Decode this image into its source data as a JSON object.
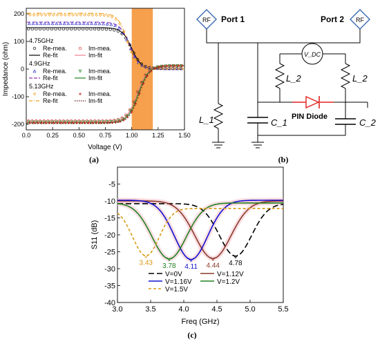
{
  "panels": {
    "a": "(a)",
    "b": "(b)",
    "c": "(c)"
  },
  "circuit": {
    "port1": "Port 1",
    "port2": "Port 2",
    "rf_label": "RF",
    "vdc_label": "V_DC",
    "l1": "L_1",
    "l2_left": "L_2",
    "l2_right": "L_2",
    "c1": "C_1",
    "c2": "C_2",
    "diode": "PIN Diode",
    "colors": {
      "wire": "#000000",
      "diode": "#e02020"
    }
  },
  "chart_data": [
    {
      "id": "a",
      "type": "line",
      "title": "",
      "xlabel": "Voltage (V)",
      "ylabel": "Impedance (ohm)",
      "xlim": [
        0.0,
        1.5
      ],
      "ylim": [
        -220,
        220
      ],
      "xticks": [
        "0.0",
        "0.25",
        "0.50",
        "0.75",
        "1.00",
        "1.25",
        "1.50"
      ],
      "yticks": [
        "200",
        "100",
        "0",
        "-100",
        "-200"
      ],
      "xtick_values": [
        0,
        0.25,
        0.5,
        0.75,
        1.0,
        1.25,
        1.5
      ],
      "ytick_values": [
        200,
        100,
        0,
        -100,
        -200
      ],
      "highlight_band": {
        "x_from": 1.0,
        "x_to": 1.2,
        "color": "#f6a04d"
      },
      "legend_groups": [
        {
          "freq": "4.75GHz",
          "items": [
            {
              "name": "Re-mea.",
              "style": "circle",
              "color": "#000000"
            },
            {
              "name": "Im-mea.",
              "style": "circle",
              "color": "#e03030"
            },
            {
              "name": "Re-fit",
              "style": "solid",
              "color": "#000000"
            },
            {
              "name": "Im-fit",
              "style": "solid",
              "color": "#f08090"
            }
          ]
        },
        {
          "freq": "4.9GHz",
          "items": [
            {
              "name": "Re-mea.",
              "style": "triangle",
              "color": "#3030d0"
            },
            {
              "name": "Im-mea.",
              "style": "triangle-down",
              "color": "#208020"
            },
            {
              "name": "Re-fit",
              "style": "dash",
              "color": "#9030b0"
            },
            {
              "name": "Im-fit",
              "style": "solid",
              "color": "#208020"
            }
          ]
        },
        {
          "freq": "5.13GHz",
          "items": [
            {
              "name": "Re-mea.",
              "style": "diamond",
              "color": "#f0a020"
            },
            {
              "name": "Im-mea.",
              "style": "star",
              "color": "#c02020"
            },
            {
              "name": "Re-fit",
              "style": "dashdot",
              "color": "#f0a020"
            },
            {
              "name": "Im-fit",
              "style": "dot",
              "color": "#602020"
            }
          ]
        }
      ],
      "series": [
        {
          "name": "Re-fit 4.75GHz",
          "color": "#000000",
          "dash": "",
          "start": 150,
          "end": 0,
          "x0": 1.0,
          "k": 22
        },
        {
          "name": "Re-fit 4.9GHz",
          "color": "#9030b0",
          "dash": "6,3",
          "start": 170,
          "end": 0,
          "x0": 0.98,
          "k": 22
        },
        {
          "name": "Re-fit 5.13GHz",
          "color": "#f0a020",
          "dash": "7,3,2,3",
          "start": 202,
          "end": 0,
          "x0": 0.96,
          "k": 22
        },
        {
          "name": "Im-fit 4.75GHz",
          "color": "#f08090",
          "dash": "",
          "start": -193,
          "end": 12,
          "x0": 1.05,
          "k": 20
        },
        {
          "name": "Im-fit 4.9GHz",
          "color": "#208020",
          "dash": "",
          "start": -195,
          "end": 12,
          "x0": 1.06,
          "k": 20
        },
        {
          "name": "Im-fit 5.13GHz",
          "color": "#602020",
          "dash": "2,2",
          "start": -197,
          "end": 12,
          "x0": 1.07,
          "k": 20
        }
      ],
      "markers": [
        {
          "name": "Re-mea. 4.75GHz",
          "shape": "circle",
          "color": "#000000",
          "start": 145,
          "end": 2,
          "x0": 1.0,
          "k": 22
        },
        {
          "name": "Re-mea. 4.9GHz",
          "shape": "triangle",
          "color": "#3030d0",
          "start": 165,
          "end": 2,
          "x0": 0.98,
          "k": 22
        },
        {
          "name": "Re-mea. 5.13GHz",
          "shape": "diamond",
          "color": "#f0a020",
          "start": 196,
          "end": 2,
          "x0": 0.96,
          "k": 22
        },
        {
          "name": "Im-mea. 4.75GHz",
          "shape": "circle",
          "color": "#e03030",
          "start": -188,
          "end": 12,
          "x0": 1.05,
          "k": 20
        },
        {
          "name": "Im-mea. 4.9GHz",
          "shape": "triangle-down",
          "color": "#208020",
          "start": -192,
          "end": 12,
          "x0": 1.06,
          "k": 20
        },
        {
          "name": "Im-mea. 5.13GHz",
          "shape": "star",
          "color": "#c02020",
          "start": -195,
          "end": 12,
          "x0": 1.07,
          "k": 20
        }
      ]
    },
    {
      "id": "c",
      "type": "line",
      "title": "",
      "xlabel": "Freq (GHz)",
      "ylabel": "S11 (dB)",
      "xlim": [
        3.0,
        5.5
      ],
      "ylim": [
        -40,
        0
      ],
      "xticks": [
        "3.0",
        "3.5",
        "4.0",
        "4.5",
        "5.0",
        "5.5"
      ],
      "yticks": [
        "-5",
        "-10",
        "-15",
        "-20",
        "-25",
        "-30",
        "-35",
        "-40"
      ],
      "xtick_values": [
        3.0,
        3.5,
        4.0,
        4.5,
        5.0,
        5.5
      ],
      "ytick_values": [
        -5,
        -10,
        -15,
        -20,
        -25,
        -30,
        -35,
        -40
      ],
      "legend": [
        {
          "name": "V=0V",
          "color": "#000000",
          "dash": "8,4"
        },
        {
          "name": "V=1.12V",
          "color": "#8b3a2a",
          "dash": ""
        },
        {
          "name": "V=1.16V",
          "color": "#1010d0",
          "dash": ""
        },
        {
          "name": "V=1.2V",
          "color": "#208020",
          "dash": ""
        },
        {
          "name": "V=1.5V",
          "color": "#d89a10",
          "dash": "4,3"
        }
      ],
      "series": [
        {
          "name": "V=0V",
          "color": "#000000",
          "dash": "8,4",
          "width": 1.6,
          "f0": 4.78,
          "min": -26.3,
          "a": 15.5,
          "b": 8.5,
          "shade": false
        },
        {
          "name": "V=1.12V",
          "color": "#8b3a2a",
          "dash": "",
          "width": 1.6,
          "f0": 4.44,
          "min": -27.0,
          "a": 17.0,
          "b": 6.8,
          "shade": true
        },
        {
          "name": "V=1.16V",
          "color": "#1010d0",
          "dash": "",
          "width": 1.6,
          "f0": 4.11,
          "min": -27.3,
          "a": 17.5,
          "b": 8.0,
          "shade": true
        },
        {
          "name": "V=1.2V",
          "color": "#208020",
          "dash": "",
          "width": 1.6,
          "f0": 3.78,
          "min": -27.1,
          "a": 16.5,
          "b": 7.5,
          "shade": true
        },
        {
          "name": "V=1.5V",
          "color": "#d89a10",
          "dash": "4,3",
          "width": 1.6,
          "f0": 3.43,
          "min": -26.2,
          "a": 14.0,
          "b": 12.5,
          "shade": false
        }
      ],
      "minima_labels": [
        {
          "text": "3.43",
          "x": 3.43,
          "y": -26.2,
          "color": "#d89a10"
        },
        {
          "text": "3.78",
          "x": 3.78,
          "y": -27.1,
          "color": "#208020"
        },
        {
          "text": "4.11",
          "x": 4.11,
          "y": -27.3,
          "color": "#1010d0"
        },
        {
          "text": "4.44",
          "x": 4.44,
          "y": -27.0,
          "color": "#8b3a2a"
        },
        {
          "text": "4.78",
          "x": 4.78,
          "y": -26.3,
          "color": "#000000"
        }
      ]
    }
  ]
}
